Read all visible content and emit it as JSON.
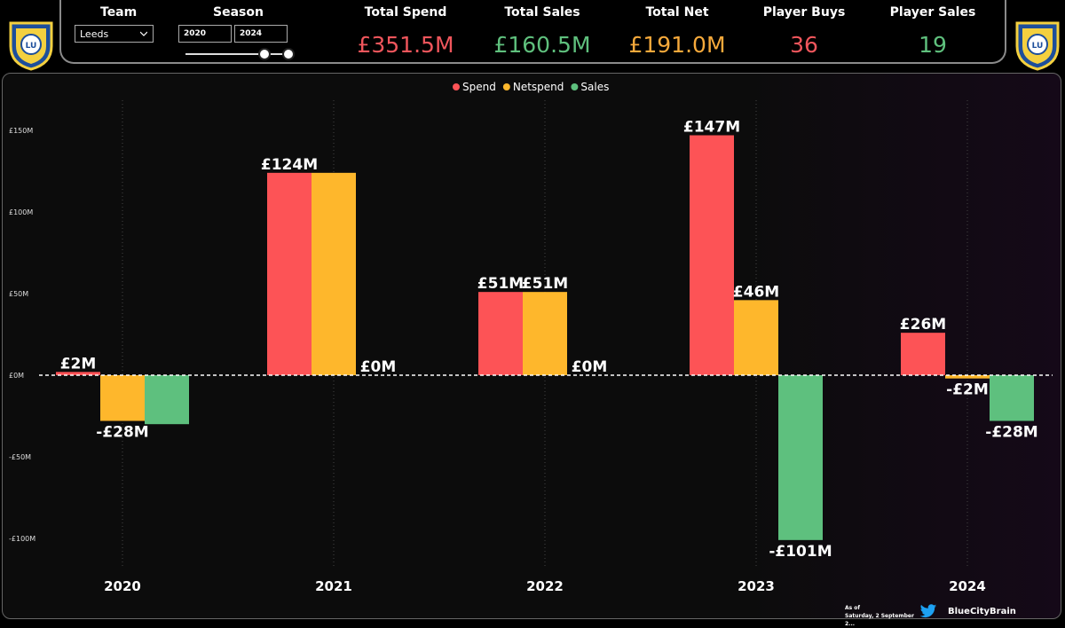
{
  "filters": {
    "team_label": "Team",
    "team_value": "Leeds",
    "season_label": "Season",
    "season_start": "2020",
    "season_end": "2024"
  },
  "kpis": [
    {
      "label": "Total Spend",
      "value": "£351.5M",
      "color": "#f0565c"
    },
    {
      "label": "Total Sales",
      "value": "£160.5M",
      "color": "#5fc07d"
    },
    {
      "label": "Total Net",
      "value": "£191.0M",
      "color": "#f6a93b"
    },
    {
      "label": "Player Buys",
      "value": "36",
      "color": "#f0565c"
    },
    {
      "label": "Player Sales",
      "value": "19",
      "color": "#5fc07d"
    }
  ],
  "chart_data": {
    "type": "bar",
    "categories": [
      "2020",
      "2021",
      "2022",
      "2023",
      "2024"
    ],
    "series": [
      {
        "name": "Spend",
        "color": "#fd5356",
        "values": [
          2,
          124,
          51,
          147,
          26
        ],
        "labels": [
          "£2M",
          "£124M",
          "£51M",
          "£147M",
          "£26M"
        ]
      },
      {
        "name": "Netspend",
        "color": "#feb72c",
        "values": [
          -28,
          124,
          51,
          46,
          -2
        ],
        "labels": [
          "-£28M",
          "",
          "£51M",
          "£46M",
          "-£2M"
        ]
      },
      {
        "name": "Sales",
        "color": "#5ec07e",
        "values": [
          -30,
          0,
          0,
          -101,
          -28
        ],
        "labels": [
          "",
          "£0M",
          "£0M",
          "-£101M",
          "-£28M"
        ]
      }
    ],
    "ylim": [
      -110,
      160
    ],
    "yticks": [
      {
        "value": 150,
        "label": "£150M"
      },
      {
        "value": 100,
        "label": "£100M"
      },
      {
        "value": 50,
        "label": "£50M"
      },
      {
        "value": 0,
        "label": "£0M"
      },
      {
        "value": -50,
        "label": "-£50M"
      },
      {
        "value": -100,
        "label": "-£100M"
      }
    ],
    "legend_position": "top-center",
    "grid": "vertical-dotted"
  },
  "footer": {
    "as_of_label": "As of",
    "as_of_date": "Saturday, 2 September 2...",
    "brand": "BlueCityBrain",
    "brand_icon": "twitter-icon"
  },
  "logo_icon": "leeds-crest-icon"
}
